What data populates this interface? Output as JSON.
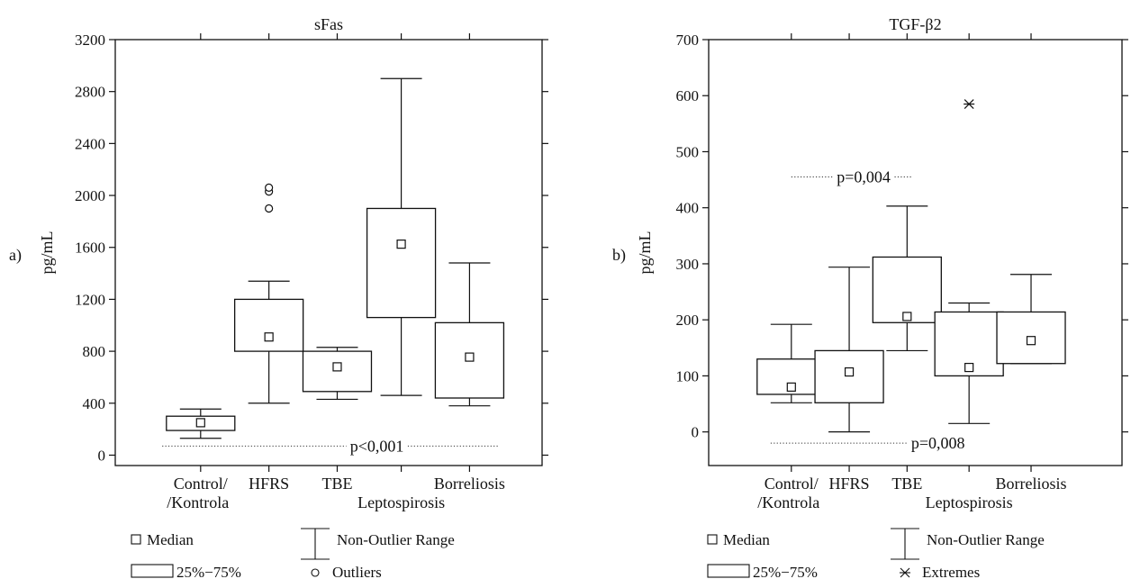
{
  "chart_data": [
    {
      "type": "box",
      "panel_label": "a)",
      "title": "sFas",
      "ylabel": "pg/mL",
      "ylim": [
        -80,
        3200
      ],
      "yticks": [
        0,
        400,
        800,
        1200,
        1600,
        2000,
        2400,
        2800,
        3200
      ],
      "xlim": [
        0,
        5
      ],
      "categories": [
        {
          "label": "Control/\n/Kontrola",
          "x": 1
        },
        {
          "label": "HFRS",
          "x": 1.8
        },
        {
          "label": "TBE",
          "x": 2.6
        },
        {
          "label": "Leptospirosis",
          "x": 3.35
        },
        {
          "label": "Borreliosis",
          "x": 4.15
        }
      ],
      "boxes": [
        {
          "group": "Control/Kontrola",
          "x": 1,
          "median": 250,
          "q1": 190,
          "q3": 300,
          "whisker_low": 130,
          "whisker_high": 355,
          "outliers": [],
          "extremes": []
        },
        {
          "group": "HFRS",
          "x": 1.8,
          "median": 910,
          "q1": 800,
          "q3": 1200,
          "whisker_low": 400,
          "whisker_high": 1340,
          "outliers": [
            1900,
            2030,
            2060
          ],
          "extremes": []
        },
        {
          "group": "TBE",
          "x": 2.6,
          "median": 680,
          "q1": 490,
          "q3": 800,
          "whisker_low": 430,
          "whisker_high": 830,
          "outliers": [],
          "extremes": []
        },
        {
          "group": "Leptospirosis",
          "x": 3.35,
          "median": 1625,
          "q1": 1060,
          "q3": 1900,
          "whisker_low": 460,
          "whisker_high": 2900,
          "outliers": [],
          "extremes": []
        },
        {
          "group": "Borreliosis",
          "x": 4.15,
          "median": 755,
          "q1": 440,
          "q3": 1020,
          "whisker_low": 380,
          "whisker_high": 1480,
          "outliers": [],
          "extremes": []
        }
      ],
      "annotations": [
        {
          "text": "p<0,001",
          "y": 70,
          "x_from": 0.55,
          "x_to": 4.5,
          "text_x": 2.75
        }
      ],
      "legend": {
        "median": "Median",
        "range": "Non-Outlier Range",
        "box": "25%−75%",
        "points": "Outliers"
      },
      "grid": false
    },
    {
      "type": "box",
      "panel_label": "b)",
      "title": "TGF-β2",
      "ylabel": "pg/mL",
      "ylim": [
        -60,
        700
      ],
      "yticks": [
        0,
        100,
        200,
        300,
        400,
        500,
        600,
        700
      ],
      "xlim": [
        0,
        5
      ],
      "categories": [
        {
          "label": "Control/\n/Kontrola",
          "x": 1
        },
        {
          "label": "HFRS",
          "x": 1.7
        },
        {
          "label": "TBE",
          "x": 2.4
        },
        {
          "label": "Leptospirosis",
          "x": 3.15
        },
        {
          "label": "Borreliosis",
          "x": 3.9
        }
      ],
      "boxes": [
        {
          "group": "Control/Kontrola",
          "x": 1,
          "median": 80,
          "q1": 67,
          "q3": 130,
          "whisker_low": 52,
          "whisker_high": 192,
          "outliers": [],
          "extremes": []
        },
        {
          "group": "HFRS",
          "x": 1.7,
          "median": 107,
          "q1": 52,
          "q3": 145,
          "whisker_low": 0,
          "whisker_high": 294,
          "outliers": [],
          "extremes": []
        },
        {
          "group": "TBE",
          "x": 2.4,
          "median": 206,
          "q1": 195,
          "q3": 312,
          "whisker_low": 145,
          "whisker_high": 403,
          "outliers": [],
          "extremes": []
        },
        {
          "group": "Leptospirosis",
          "x": 3.15,
          "median": 115,
          "q1": 100,
          "q3": 214,
          "whisker_low": 15,
          "whisker_high": 230,
          "outliers": [],
          "extremes": [
            585
          ]
        },
        {
          "group": "Borreliosis",
          "x": 3.9,
          "median": 163,
          "q1": 122,
          "q3": 214,
          "whisker_low": 122,
          "whisker_high": 281,
          "outliers": [],
          "extremes": []
        }
      ],
      "annotations": [
        {
          "text": "p=0,004",
          "y": 455,
          "x_from": 1.0,
          "x_to": 2.45,
          "text_x": 1.55
        },
        {
          "text": "p=0,008",
          "y": -20,
          "x_from": 0.75,
          "x_to": 2.4,
          "text_x": 2.45
        }
      ],
      "legend": {
        "median": "Median",
        "range": "Non-Outlier Range",
        "box": "25%−75%",
        "points": "Extremes"
      },
      "grid": false
    }
  ]
}
